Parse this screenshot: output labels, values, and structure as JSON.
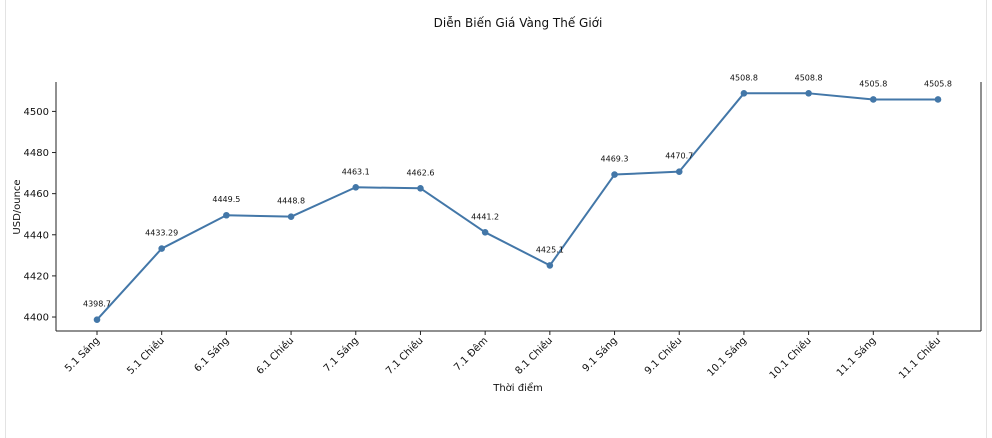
{
  "chart_data": {
    "type": "line",
    "title": "Diễn Biến Giá Vàng Thế Giới",
    "xlabel": "Thời điểm",
    "ylabel": "USD/ounce",
    "categories": [
      "5.1 Sáng",
      "5.1 Chiều",
      "6.1 Sáng",
      "6.1 Chiều",
      "7.1 Sáng",
      "7.1 Chiều",
      "7.1 Đêm",
      "8.1 Chiều",
      "9.1 Sáng",
      "9.1 Chiều",
      "10.1 Sáng",
      "10.1 Chiều",
      "11.1 Sáng",
      "11.1 Chiều"
    ],
    "series": [
      {
        "values": [
          4398.7,
          4433.29,
          4449.5,
          4448.8,
          4463.1,
          4462.6,
          4441.2,
          4425.1,
          4469.3,
          4470.7,
          4508.8,
          4508.8,
          4505.8,
          4505.8
        ],
        "labels": [
          "4398.7",
          "4433.29",
          "4449.5",
          "4448.8",
          "4463.1",
          "4462.6",
          "4441.2",
          "4425.1",
          "4469.3",
          "4470.7",
          "4508.8",
          "4508.8",
          "4505.8",
          "4505.8"
        ]
      }
    ],
    "ylim": [
      4393.2,
      4514.3
    ],
    "yticks": [
      4400,
      4420,
      4440,
      4460,
      4480,
      4500
    ],
    "grid": false,
    "line_color": "#4377a8"
  }
}
